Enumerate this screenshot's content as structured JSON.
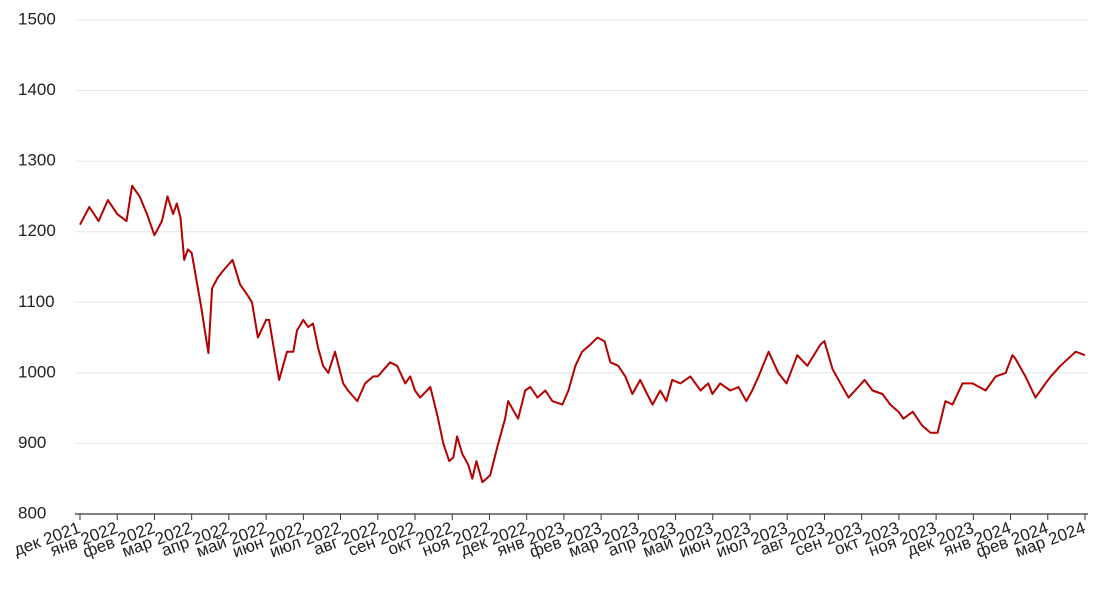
{
  "chart_data": {
    "type": "line",
    "color": "#b40000",
    "x": [
      0,
      0.25,
      0.5,
      0.75,
      1.0,
      1.25,
      1.4,
      1.6,
      1.8,
      2.0,
      2.2,
      2.35,
      2.5,
      2.6,
      2.7,
      2.8,
      2.9,
      3.0,
      3.1,
      3.25,
      3.45,
      3.55,
      3.7,
      3.85,
      4.1,
      4.3,
      4.5,
      4.62,
      4.78,
      5.0,
      5.08,
      5.19,
      5.35,
      5.56,
      5.73,
      5.83,
      6.0,
      6.13,
      6.26,
      6.4,
      6.53,
      6.67,
      6.85,
      7.07,
      7.2,
      7.45,
      7.66,
      7.88,
      8.0,
      8.33,
      8.52,
      8.74,
      8.87,
      9.0,
      9.14,
      9.41,
      9.6,
      9.76,
      9.92,
      10.03,
      10.13,
      10.27,
      10.43,
      10.54,
      10.65,
      10.81,
      11.02,
      11.21,
      11.42,
      11.5,
      11.77,
      11.96,
      12.1,
      12.29,
      12.5,
      12.69,
      12.96,
      13.12,
      13.31,
      13.49,
      13.71,
      13.9,
      14.09,
      14.25,
      14.46,
      14.65,
      14.84,
      15.05,
      15.19,
      15.38,
      15.59,
      15.75,
      15.91,
      16.13,
      16.4,
      16.67,
      16.88,
      16.99,
      17.2,
      17.47,
      17.69,
      17.9,
      18.06,
      18.23,
      18.5,
      18.76,
      18.98,
      19.27,
      19.54,
      19.89,
      20.0,
      20.22,
      20.43,
      20.65,
      20.91,
      21.08,
      21.29,
      21.56,
      21.77,
      21.99,
      22.12,
      22.37,
      22.63,
      22.85,
      23.04,
      23.25,
      23.44,
      23.71,
      23.98,
      24.33,
      24.6,
      24.87,
      25.05,
      25.13,
      25.4,
      25.67,
      25.94,
      26.08,
      26.34,
      26.75,
      27.0
    ],
    "values": [
      1210,
      1235,
      1215,
      1245,
      1225,
      1215,
      1265,
      1250,
      1225,
      1195,
      1215,
      1250,
      1225,
      1240,
      1220,
      1160,
      1175,
      1170,
      1140,
      1095,
      1028,
      1120,
      1135,
      1145,
      1160,
      1125,
      1110,
      1100,
      1050,
      1075,
      1075,
      1040,
      990,
      1030,
      1030,
      1060,
      1075,
      1065,
      1070,
      1035,
      1010,
      1000,
      1030,
      985,
      975,
      960,
      985,
      995,
      995,
      1015,
      1010,
      985,
      995,
      975,
      965,
      980,
      940,
      900,
      875,
      880,
      910,
      885,
      870,
      850,
      875,
      845,
      855,
      895,
      935,
      960,
      935,
      975,
      980,
      965,
      975,
      960,
      955,
      975,
      1010,
      1030,
      1040,
      1050,
      1045,
      1015,
      1010,
      995,
      970,
      990,
      975,
      955,
      975,
      960,
      990,
      985,
      995,
      975,
      985,
      970,
      985,
      975,
      980,
      960,
      975,
      995,
      1030,
      1000,
      985,
      1025,
      1010,
      1040,
      1045,
      1005,
      985,
      965,
      980,
      990,
      975,
      970,
      955,
      945,
      935,
      945,
      925,
      915,
      915,
      960,
      955,
      985,
      985,
      975,
      995,
      1000,
      1025,
      1020,
      995,
      965,
      985,
      995,
      1010,
      1030,
      1025
    ],
    "xlim": [
      0,
      27
    ],
    "xticks": [
      {
        "value": 0,
        "label": "дек 2021"
      },
      {
        "value": 1,
        "label": "янв 2022"
      },
      {
        "value": 2,
        "label": "фев 2022"
      },
      {
        "value": 3,
        "label": "мар 2022"
      },
      {
        "value": 4,
        "label": "апр 2022"
      },
      {
        "value": 5,
        "label": "май 2022"
      },
      {
        "value": 6,
        "label": "июн 2022"
      },
      {
        "value": 7,
        "label": "июл 2022"
      },
      {
        "value": 8,
        "label": "авг 2022"
      },
      {
        "value": 9,
        "label": "сен 2022"
      },
      {
        "value": 10,
        "label": "окт 2022"
      },
      {
        "value": 11,
        "label": "ноя 2022"
      },
      {
        "value": 12,
        "label": "дек 2022"
      },
      {
        "value": 13,
        "label": "янв 2023"
      },
      {
        "value": 14,
        "label": "фев 2023"
      },
      {
        "value": 15,
        "label": "мар 2023"
      },
      {
        "value": 16,
        "label": "апр 2023"
      },
      {
        "value": 17,
        "label": "май 2023"
      },
      {
        "value": 18,
        "label": "июн 2023"
      },
      {
        "value": 19,
        "label": "июл 2023"
      },
      {
        "value": 20,
        "label": "авг 2023"
      },
      {
        "value": 21,
        "label": "сен 2023"
      },
      {
        "value": 22,
        "label": "окт 2023"
      },
      {
        "value": 23,
        "label": "ноя 2023"
      },
      {
        "value": 24,
        "label": "дек 2023"
      },
      {
        "value": 25,
        "label": "янв 2024"
      },
      {
        "value": 26,
        "label": "фев 2024"
      },
      {
        "value": 27,
        "label": "мар 2024"
      }
    ],
    "ylim": [
      800,
      1500
    ],
    "yticks": [
      800,
      900,
      1000,
      1100,
      1200,
      1300,
      1400,
      1500
    ],
    "grid": true
  }
}
